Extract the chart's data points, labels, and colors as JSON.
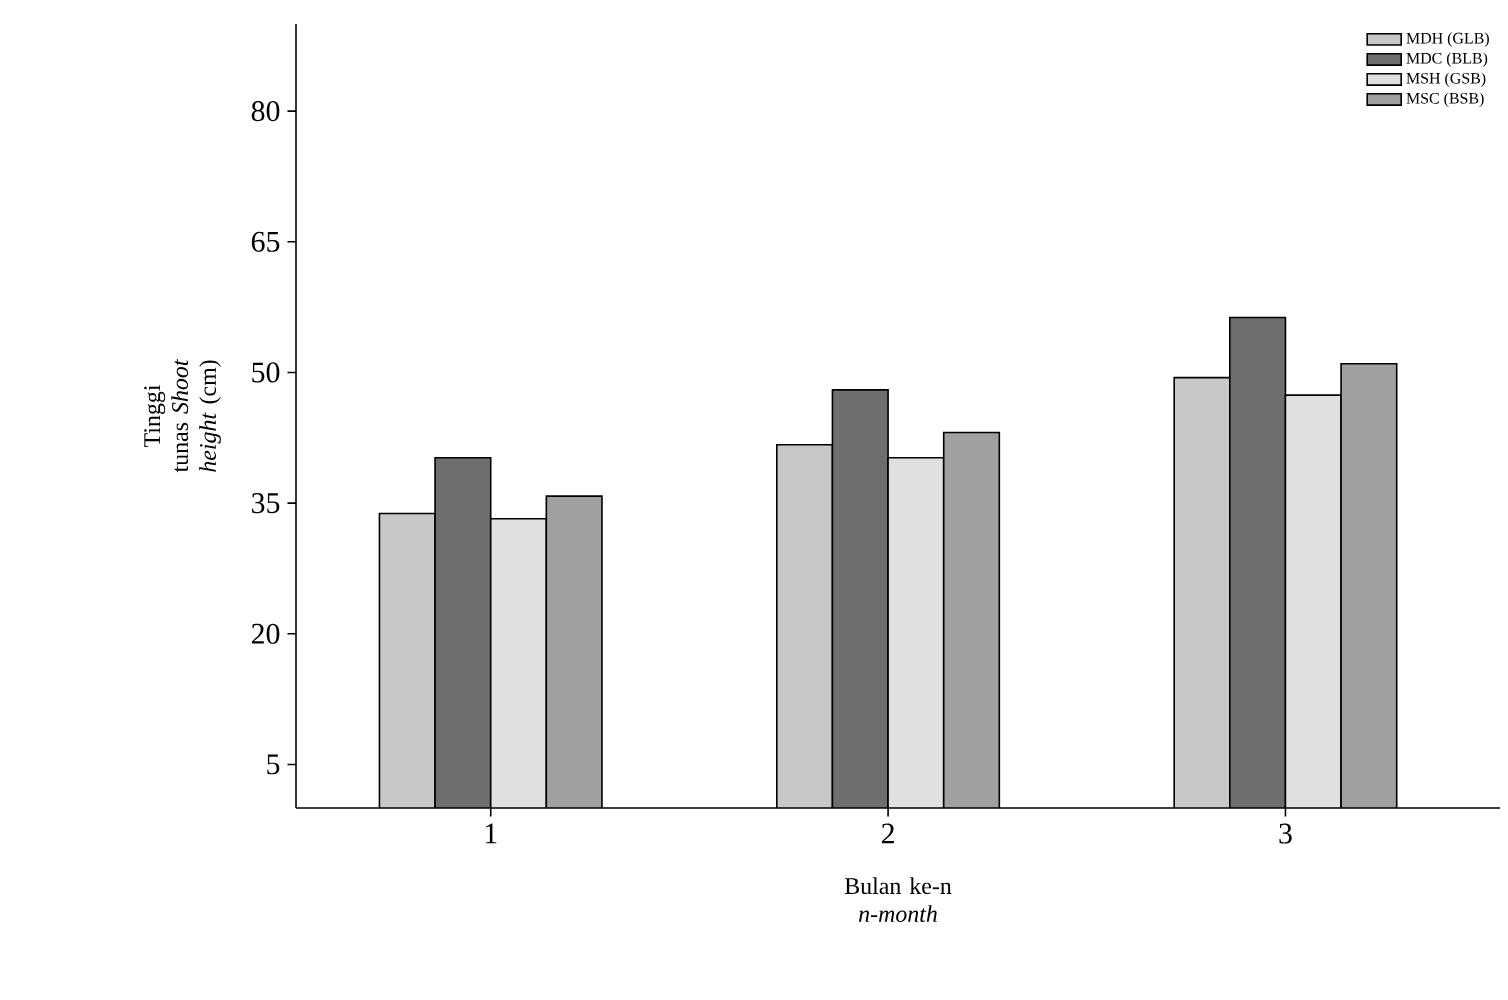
{
  "chart_data": {
    "type": "bar",
    "xlabel": "Bulan ke-n *n-month*",
    "ylabel": "Tinggi tunas *Shoot height* (cm)",
    "categories": [
      "1",
      "2",
      "3"
    ],
    "series": [
      {
        "name": "MDH (GLB)",
        "color": "#c8c8c8",
        "values": [
          33.8,
          41.7,
          49.4
        ]
      },
      {
        "name": "MDC (BLB)",
        "color": "#6e6e6e",
        "values": [
          40.2,
          48.0,
          56.3
        ]
      },
      {
        "name": "MSH (GSB)",
        "color": "#e0e0e0",
        "values": [
          33.2,
          40.2,
          47.4
        ]
      },
      {
        "name": "MSC (BSB)",
        "color": "#a0a0a0",
        "values": [
          35.8,
          43.1,
          51.0
        ]
      }
    ],
    "ylim": [
      0,
      90
    ],
    "yticks": [
      5,
      20,
      35,
      50,
      65,
      80
    ],
    "grid": false,
    "legend": "top right"
  }
}
